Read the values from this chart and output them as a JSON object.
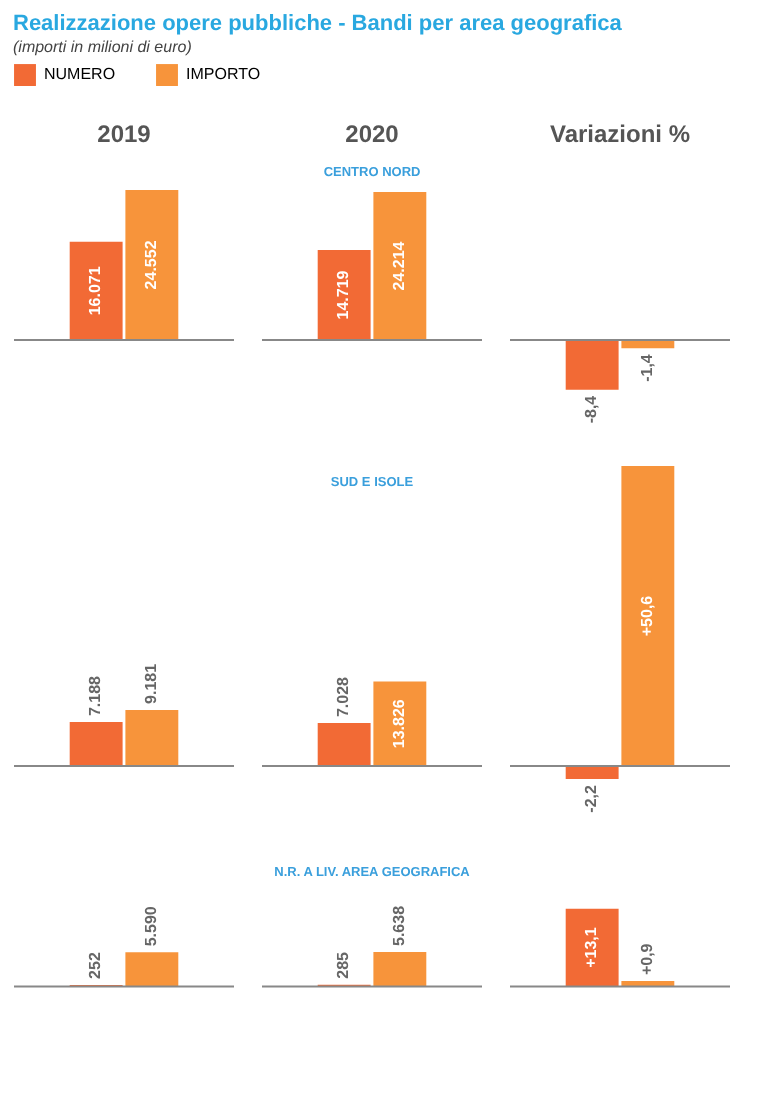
{
  "chart_data": [
    {
      "type": "other",
      "title": "Realizzazione opere pubbliche - Bandi per area geografica",
      "subtitle": "(importi in milioni di euro)"
    },
    {
      "type": "bar",
      "title": "2019",
      "categories": [
        null
      ],
      "legend": "top",
      "series": [
        {
          "name": "NUMERO",
          "color": "#f26a35",
          "values": [
            16071
          ],
          "value_labels": [
            "16.071"
          ]
        },
        {
          "name": "IMPORTO",
          "color": "#f7943b",
          "values": [
            24552
          ],
          "value_labels": [
            "24.552"
          ]
        }
      ]
    },
    {
      "type": "bar",
      "title": "2020",
      "annotations": [
        "CENTRO NORD"
      ],
      "categories": [
        null
      ],
      "series": [
        {
          "color": "#f26a35",
          "values": [
            14719
          ],
          "value_labels": [
            "14.719"
          ]
        },
        {
          "color": "#f7943b",
          "values": [
            24214
          ],
          "value_labels": [
            "24.214"
          ]
        }
      ]
    },
    {
      "type": "bar",
      "title": "Variazioni %",
      "categories": [
        null
      ],
      "series": [
        {
          "color": "#f26a35",
          "values": [
            -8.4
          ],
          "value_labels": [
            "-8,4"
          ]
        },
        {
          "color": "#f7943b",
          "values": [
            -1.4
          ],
          "value_labels": [
            "-1,4"
          ]
        }
      ]
    },
    {
      "type": "bar",
      "categories": [
        null
      ],
      "series": [
        {
          "color": "#f26a35",
          "values": [
            7188
          ],
          "value_labels": [
            "7.188"
          ]
        },
        {
          "color": "#f7943b",
          "values": [
            9181
          ],
          "value_labels": [
            "9.181"
          ]
        }
      ]
    },
    {
      "type": "bar",
      "annotations": [
        "SUD E ISOLE"
      ],
      "categories": [
        null
      ],
      "series": [
        {
          "color": "#f26a35",
          "values": [
            7028
          ],
          "value_labels": [
            "7.028"
          ]
        },
        {
          "color": "#f7943b",
          "values": [
            13826
          ],
          "value_labels": [
            "13.826"
          ]
        }
      ]
    },
    {
      "type": "bar",
      "categories": [
        null
      ],
      "series": [
        {
          "color": "#f26a35",
          "values": [
            -2.2
          ],
          "value_labels": [
            "-2,2"
          ]
        },
        {
          "color": "#f7943b",
          "values": [
            50.6
          ],
          "value_labels": [
            "+50,6"
          ]
        }
      ]
    },
    {
      "type": "bar",
      "categories": [
        null
      ],
      "series": [
        {
          "color": "#f26a35",
          "values": [
            252
          ],
          "value_labels": [
            "252"
          ]
        },
        {
          "color": "#f7943b",
          "values": [
            5590
          ],
          "value_labels": [
            "5.590"
          ]
        }
      ]
    },
    {
      "type": "bar",
      "annotations": [
        "N.R. A LIV. AREA GEOGRAFICA"
      ],
      "categories": [
        null
      ],
      "series": [
        {
          "color": "#f26a35",
          "values": [
            285
          ],
          "value_labels": [
            "285"
          ]
        },
        {
          "color": "#f7943b",
          "values": [
            5638
          ],
          "value_labels": [
            "5.638"
          ]
        }
      ]
    },
    {
      "type": "bar",
      "categories": [
        null
      ],
      "series": [
        {
          "color": "#f26a35",
          "values": [
            13.1
          ],
          "value_labels": [
            "+13,1"
          ]
        },
        {
          "color": "#f7943b",
          "values": [
            0.9
          ],
          "value_labels": [
            "+0,9"
          ]
        }
      ]
    }
  ]
}
